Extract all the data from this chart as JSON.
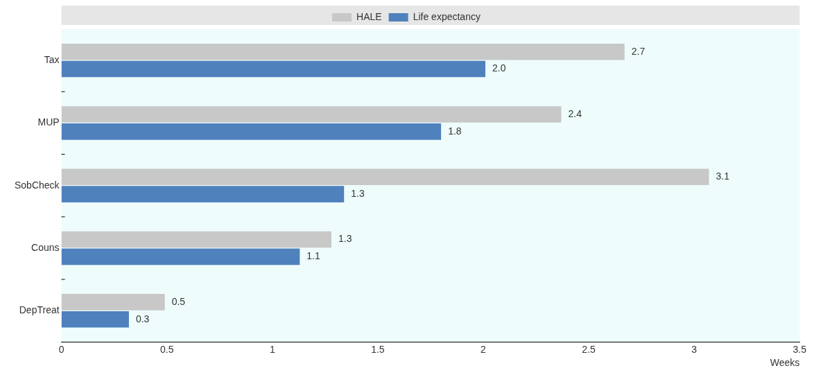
{
  "chart_data": {
    "type": "bar",
    "orientation": "horizontal",
    "xlabel": "Weeks",
    "categories": [
      "Tax",
      "MUP",
      "SobCheck",
      "Couns",
      "DepTreat"
    ],
    "series": [
      {
        "name": "HALE",
        "color": "#c8c8c8",
        "values": [
          2.67,
          2.37,
          3.07,
          1.28,
          0.49
        ],
        "value_labels": [
          "2.7",
          "2.4",
          "3.1",
          "1.3",
          "0.5"
        ]
      },
      {
        "name": "Life expectancy",
        "color": "#4f81bd",
        "values": [
          2.01,
          1.8,
          1.34,
          1.13,
          0.32
        ],
        "value_labels": [
          "2.0",
          "1.8",
          "1.3",
          "1.1",
          "0.3"
        ]
      }
    ],
    "xlim": [
      0,
      3.5
    ],
    "xticks": [
      0,
      0.5,
      1,
      1.5,
      2,
      2.5,
      3,
      3.5
    ],
    "grid": false,
    "legend": "top"
  }
}
